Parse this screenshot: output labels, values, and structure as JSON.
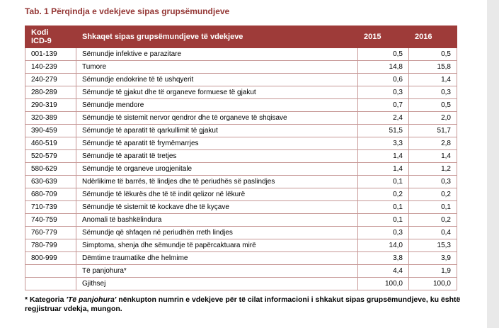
{
  "page": {
    "title": "Tab. 1 Përqindja e vdekjeve sipas grupsëmundjeve"
  },
  "table": {
    "headers": {
      "code_line1": "Kodi",
      "code_line2": "ICD-9",
      "cause": "Shkaqet sipas grupsëmundjeve të vdekjeve",
      "y2015": "2015",
      "y2016": "2016"
    },
    "rows": [
      {
        "code": "001-139",
        "cause": "Sëmundje infektive e parazitare",
        "v2015": "0,5",
        "v2016": "0,5"
      },
      {
        "code": "140-239",
        "cause": "Tumore",
        "v2015": "14,8",
        "v2016": "15,8"
      },
      {
        "code": "240-279",
        "cause": "Sëmundje endokrine të të ushqyerit",
        "v2015": "0,6",
        "v2016": "1,4"
      },
      {
        "code": "280-289",
        "cause": "Sëmundje të gjakut dhe të organeve formuese të gjakut",
        "v2015": "0,3",
        "v2016": "0,3"
      },
      {
        "code": "290-319",
        "cause": "Sëmundje mendore",
        "v2015": "0,7",
        "v2016": "0,5"
      },
      {
        "code": "320-389",
        "cause": "Sëmundje të sistemit nervor qendror dhe të organeve të shqisave",
        "v2015": "2,4",
        "v2016": "2,0"
      },
      {
        "code": "390-459",
        "cause": "Sëmundje të aparatit të qarkullimit të gjakut",
        "v2015": "51,5",
        "v2016": "51,7"
      },
      {
        "code": "460-519",
        "cause": "Sëmundje të aparatit të frymëmarrjes",
        "v2015": "3,3",
        "v2016": "2,8"
      },
      {
        "code": "520-579",
        "cause": "Sëmundje të aparatit të tretjes",
        "v2015": "1,4",
        "v2016": "1,4"
      },
      {
        "code": "580-629",
        "cause": "Sëmundje të organeve urogjenitale",
        "v2015": "1,4",
        "v2016": "1,2"
      },
      {
        "code": "630-639",
        "cause": "Ndërlikime të barrës, të lindjes dhe të periudhës së paslindjes",
        "v2015": "0,1",
        "v2016": "0,3"
      },
      {
        "code": "680-709",
        "cause": "Sëmundje të lëkurës dhe të të indit qelizor në lëkurë",
        "v2015": "0,2",
        "v2016": "0,2"
      },
      {
        "code": "710-739",
        "cause": "Sëmundje të sistemit të kockave dhe të kyçave",
        "v2015": "0,1",
        "v2016": "0,1"
      },
      {
        "code": "740-759",
        "cause": "Anomali të bashkëlindura",
        "v2015": "0,1",
        "v2016": "0,2"
      },
      {
        "code": "760-779",
        "cause": "Sëmundje që shfaqen në periudhën rreth lindjes",
        "v2015": "0,3",
        "v2016": "0,4"
      },
      {
        "code": "780-799",
        "cause": "Simptoma, shenja dhe sëmundje të papërcaktuara mirë",
        "v2015": "14,0",
        "v2016": "15,3"
      },
      {
        "code": "800-999",
        "cause": "Dëmtime traumatike dhe helmime",
        "v2015": "3,8",
        "v2016": "3,9"
      },
      {
        "code": "",
        "cause": "Të panjohura*",
        "v2015": "4,4",
        "v2016": "1,9"
      },
      {
        "code": "",
        "cause": "Gjithsej",
        "v2015": "100,0",
        "v2016": "100,0"
      }
    ]
  },
  "footnote": {
    "part1": "* Kategoria ",
    "category": "'Të panjohura'",
    "part2": " nënkupton numrin e vdekjeve për të cilat informacioni i shkakut sipas grupsëmundjeve, ku është regjistruar vdekja, mungon."
  },
  "colors": {
    "title_color": "#943634",
    "header_bg": "#9e3b39",
    "header_2016_bg": "#c0504d",
    "col_2015_bg": "#f2f2f2",
    "col_2016_bg": "#f2dcdb",
    "border_color": "#c69795"
  }
}
